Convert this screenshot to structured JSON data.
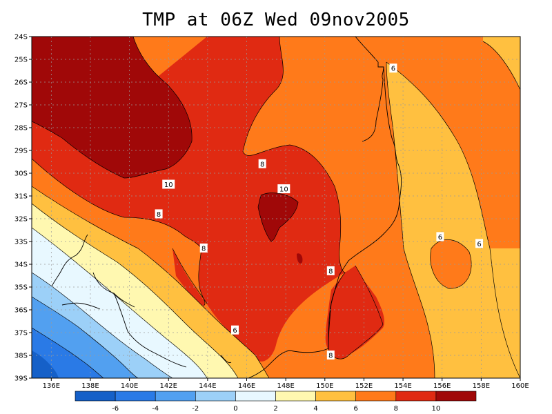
{
  "title": "TMP at 06Z Wed 09nov2005",
  "map": {
    "lat_labels": [
      "24S",
      "25S",
      "26S",
      "27S",
      "28S",
      "29S",
      "30S",
      "31S",
      "32S",
      "33S",
      "34S",
      "35S",
      "36S",
      "37S",
      "38S",
      "39S"
    ],
    "lon_labels": [
      "136E",
      "138E",
      "140E",
      "142E",
      "144E",
      "146E",
      "148E",
      "150E",
      "152E",
      "154E",
      "156E",
      "158E",
      "160E"
    ],
    "contour_labels": [
      {
        "text": "6",
        "lon": 153.5,
        "lat": 25.4
      },
      {
        "text": "8",
        "lon": 146.8,
        "lat": 29.6
      },
      {
        "text": "10",
        "lon": 142.0,
        "lat": 30.5
      },
      {
        "text": "10",
        "lon": 147.9,
        "lat": 30.7
      },
      {
        "text": "8",
        "lon": 141.5,
        "lat": 31.8
      },
      {
        "text": "8",
        "lon": 143.8,
        "lat": 33.3
      },
      {
        "text": "6",
        "lon": 155.9,
        "lat": 32.8
      },
      {
        "text": "6",
        "lon": 157.9,
        "lat": 33.1
      },
      {
        "text": "8",
        "lon": 150.3,
        "lat": 34.3
      },
      {
        "text": "6",
        "lon": 145.4,
        "lat": 36.9
      },
      {
        "text": "8",
        "lon": 150.3,
        "lat": 38.0
      }
    ]
  },
  "colorbar": {
    "labels": [
      "-6",
      "-4",
      "-2",
      "0",
      "2",
      "4",
      "6",
      "8",
      "10"
    ],
    "colors": [
      "#1560c8",
      "#2a7ae6",
      "#52a0f0",
      "#9cd0f8",
      "#e8f8ff",
      "#fff8b0",
      "#ffc040",
      "#ff7a1a",
      "#e02a12",
      "#a00808"
    ]
  }
}
